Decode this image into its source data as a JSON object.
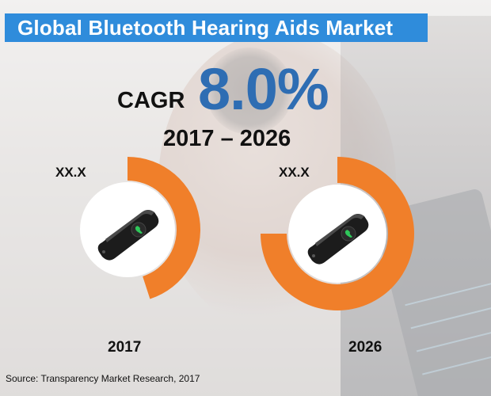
{
  "header": {
    "title": "Global Bluetooth Hearing Aids Market"
  },
  "cagr": {
    "label": "CAGR",
    "value": "8.0%",
    "period": "2017 – 2026"
  },
  "chart_data": {
    "type": "pie",
    "title": "Global Bluetooth Hearing Aids Market",
    "categories": [
      "2017",
      "2026"
    ],
    "value_labels": [
      "XX.X",
      "XX.X"
    ],
    "ring_fill_fraction": [
      0.45,
      0.75
    ],
    "colors": {
      "ring": "#f07f2a",
      "center": "#ffffff"
    }
  },
  "source": "Source: Transparency Market Research, 2017",
  "icons": {
    "device": "bluetooth-hearing-aid-icon"
  }
}
